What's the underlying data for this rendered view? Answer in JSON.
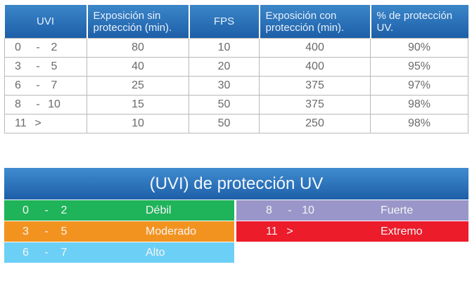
{
  "table": {
    "headers": [
      "UVI",
      "Exposición sin protección (min).",
      "FPS",
      "Exposición con protección (min).",
      "% de protección UV."
    ],
    "rows": [
      {
        "uvi_from": "0",
        "uvi_sep": "-",
        "uvi_to": "2",
        "sin": "80",
        "fps": "10",
        "con": "400",
        "pct": "90%"
      },
      {
        "uvi_from": "3",
        "uvi_sep": "-",
        "uvi_to": "5",
        "sin": "40",
        "fps": "20",
        "con": "400",
        "pct": "95%"
      },
      {
        "uvi_from": "6",
        "uvi_sep": "-",
        "uvi_to": "7",
        "sin": "25",
        "fps": "30",
        "con": "375",
        "pct": "97%"
      },
      {
        "uvi_from": "8",
        "uvi_sep": "-",
        "uvi_to": "10",
        "sin": "15",
        "fps": "50",
        "con": "375",
        "pct": "98%"
      },
      {
        "uvi_from": "11",
        "uvi_sep": ">",
        "uvi_to": "",
        "sin": "10",
        "fps": "50",
        "con": "250",
        "pct": "98%"
      }
    ]
  },
  "legend": {
    "title": "(UVI) de protección UV",
    "items": [
      {
        "from": "0",
        "sep": "-",
        "to": "2",
        "label": "Débil",
        "color": "#1fb35a"
      },
      {
        "from": "3",
        "sep": "-",
        "to": "5",
        "label": "Moderado",
        "color": "#f3931f"
      },
      {
        "from": "6",
        "sep": "-",
        "to": "7",
        "label": "Alto",
        "color": "#6ccff6"
      },
      {
        "from": "8",
        "sep": "-",
        "to": "10",
        "label": "Fuerte",
        "color": "#9b96c9"
      },
      {
        "from": "11",
        "sep": ">",
        "to": "",
        "label": "Extremo",
        "color": "#ec1c2a"
      }
    ]
  },
  "colors": {
    "header_blue": "#2a6fb8"
  }
}
